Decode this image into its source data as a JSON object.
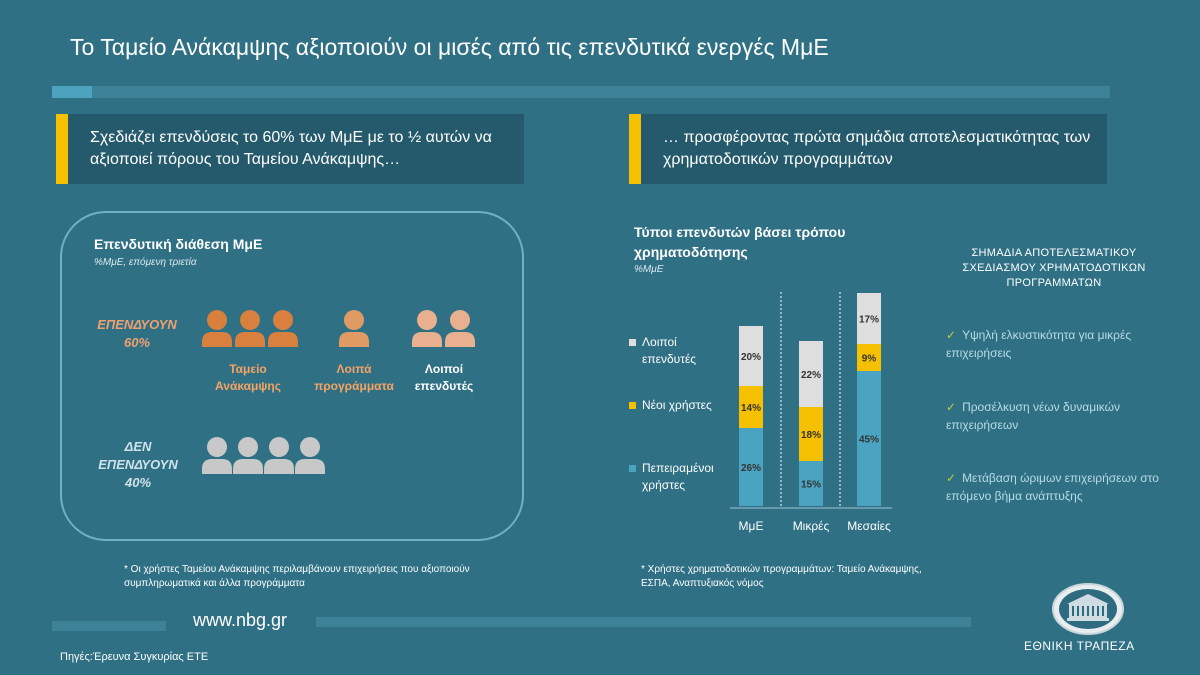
{
  "title": "Το Ταμείο Ανάκαμψης αξιοποιούν οι μισές από τις επενδυτικά ενεργές ΜμΕ",
  "left_header": "Σχεδιάζει επενδύσεις το 60% των ΜμΕ με το ½ αυτών να αξιοποιεί πόρους του Ταμείου Ανάκαμψης…",
  "right_header": "… προσφέροντας πρώτα σημάδια αποτελεσματικότητας των χρηματοδοτικών προγραμμάτων",
  "left_panel": {
    "title": "Επενδυτική διάθεση ΜμΕ",
    "unit": "%ΜμΕ, επόμενη τριετία",
    "invest_label": "ΕΠΕΝΔΥΟΥΝ",
    "invest_value": "60%",
    "no_invest_label": "ΔΕΝ ΕΠΕΝΔΥΟΥΝ",
    "no_invest_value": "40%",
    "groups": [
      {
        "label": "Ταμείο Ανάκαμψης",
        "count": 3,
        "color": "#d9803e"
      },
      {
        "label": "Λοιπά προγράμματα",
        "count": 1,
        "color": "#e09a64"
      },
      {
        "label": "Λοιποί επενδυτές",
        "count": 2,
        "color": "#e8b08e"
      }
    ],
    "no_invest_count": 4,
    "no_invest_color": "#c8c8c8",
    "note": "* Οι χρήστες Ταμείου Ανάκαμψης περιλαμβάνουν επιχειρήσεις που αξιοποιούν συμπληρωματικά και άλλα προγράμματα"
  },
  "chart_data": {
    "type": "bar",
    "stacked": true,
    "title": "Τύποι επενδυτών βάσει τρόπου χρηματοδότησης",
    "unit": "%ΜμΕ",
    "categories": [
      "ΜμΕ",
      "Μικρές",
      "Μεσαίες"
    ],
    "series": [
      {
        "name": "Πεπειραμένοι χρήστες",
        "values": [
          26,
          15,
          45
        ],
        "labels": [
          "26%",
          "15%",
          "45%"
        ],
        "color": "#4aa3c0"
      },
      {
        "name": "Νέοι χρήστες",
        "values": [
          14,
          18,
          9
        ],
        "labels": [
          "14%",
          "18%",
          "9%"
        ],
        "color": "#f5c000"
      },
      {
        "name": "Λοιποί επενδυτές",
        "values": [
          20,
          22,
          17
        ],
        "labels": [
          "20%",
          "22%",
          "17%"
        ],
        "color": "#dedede"
      }
    ],
    "label_color": "#333333",
    "grid": false
  },
  "chart_note": "* Χρήστες χρηματοδοτικών προγραμμάτων: Ταμείο Ανάκαμψης, ΕΣΠΑ, Αναπτυξιακός νόμος",
  "indicators": {
    "title": "ΣΗΜΑΔΙΑ ΑΠΟΤΕΛΕΣΜΑΤΙΚΟΥ ΣΧΕΔΙΑΣΜΟΥ ΧΡΗΜΑΤΟΔΟΤΙΚΩΝ ΠΡΟΓΡΑΜΜΑΤΩΝ",
    "items": [
      "Υψηλή ελκυστικότητα για μικρές επιχειρήσεις",
      "Προσέλκυση νέων δυναμικών επιχειρήσεων",
      "Μετάβαση ώριμων επιχειρήσεων στο επόμενο βήμα ανάπτυξης"
    ]
  },
  "footer": {
    "url": "www.nbg.gr",
    "source": "Πηγές:Έρευνα Συγκυρίας ΕΤΕ",
    "bank_name": "ΕΘΝΙΚΗ ΤΡΑΠΕΖΑ"
  },
  "colors": {
    "background": "#2f7085",
    "accent": "#f5c000",
    "orange": "#d9803e",
    "header_box": "#245a6b"
  }
}
